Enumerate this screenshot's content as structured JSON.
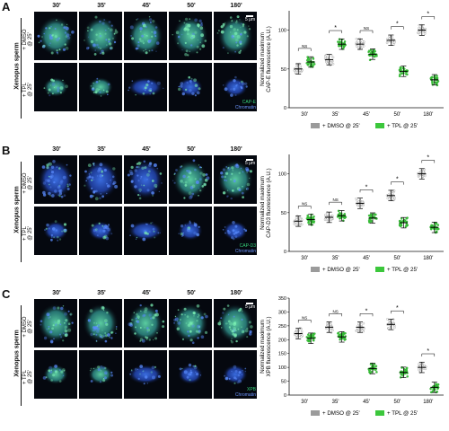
{
  "colors": {
    "dmso_gray": "#9b9b9b",
    "tpl_green": "#3cc73c",
    "dapi_blue": "#2a5ad8",
    "protein_green": "#36d27a",
    "axis": "#111111"
  },
  "common": {
    "timepoints": [
      "30'",
      "35'",
      "45'",
      "50'",
      "180'"
    ],
    "side_title": "Xenopus sperm",
    "cond_top": "+ DMSO\n@ 25'",
    "cond_bottom": "+ TPL\n@ 25'",
    "legend_dmso": "+ DMSO @ 25'",
    "legend_tpl": "+ TPL @ 25'",
    "scale_label": "5 μm",
    "chromatin_label": "Chromatin"
  },
  "panels": [
    {
      "letter": "A",
      "protein": "CAP-E",
      "chart_data": {
        "type": "scatter",
        "ylabel": "Normalized maximum\nCAP-E fluorescence (A.U.)",
        "categories": [
          "30'",
          "35'",
          "45'",
          "50'",
          "180'"
        ],
        "ylim": [
          0,
          125
        ],
        "yticks": [
          0,
          50,
          100
        ],
        "series": [
          {
            "name": "+ DMSO @ 25'",
            "values": [
              50,
              62,
              82,
              87,
              100
            ]
          },
          {
            "name": "+ TPL @ 25'",
            "values": [
              59,
              82,
              69,
              47,
              36
            ]
          }
        ],
        "significance": [
          "NS",
          "*",
          "NS",
          "*",
          "*"
        ]
      }
    },
    {
      "letter": "B",
      "protein": "CAP-D3",
      "chart_data": {
        "type": "scatter",
        "ylabel": "Normalized maximum\nCAP-D3 fluorescence (A.U.)",
        "categories": [
          "30'",
          "35'",
          "45'",
          "50'",
          "180'"
        ],
        "ylim": [
          0,
          125
        ],
        "yticks": [
          0,
          50,
          100
        ],
        "series": [
          {
            "name": "+ DMSO @ 25'",
            "values": [
              39,
              44,
              62,
              72,
              100
            ]
          },
          {
            "name": "+ TPL @ 25'",
            "values": [
              41,
              46,
              43,
              37,
              31
            ]
          }
        ],
        "significance": [
          "NS",
          "NS",
          "*",
          "*",
          "*"
        ]
      }
    },
    {
      "letter": "C",
      "protein": "XPB",
      "chart_data": {
        "type": "scatter",
        "ylabel": "Normalized maximum\nXPB fluorescence (A.U.)",
        "categories": [
          "30'",
          "35'",
          "45'",
          "50'",
          "180'"
        ],
        "ylim": [
          0,
          350
        ],
        "yticks": [
          0,
          50,
          100,
          150,
          200,
          250,
          300,
          350
        ],
        "series": [
          {
            "name": "+ DMSO @ 25'",
            "values": [
              222,
              245,
              245,
              255,
              100
            ]
          },
          {
            "name": "+ TPL @ 25'",
            "values": [
              205,
              210,
              96,
              82,
              28
            ]
          }
        ],
        "significance": [
          "NS",
          "NS",
          "*",
          "*",
          "*"
        ]
      }
    }
  ]
}
